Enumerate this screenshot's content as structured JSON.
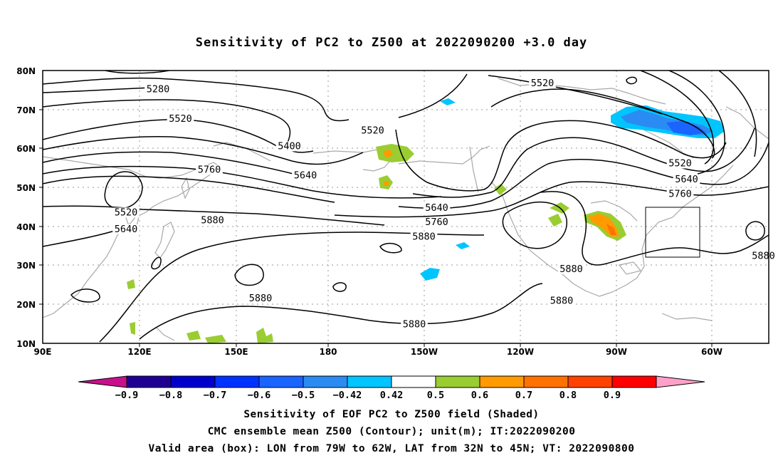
{
  "title": "Sensitivity of PC2 to Z500 at 2022090200 +3.0 day",
  "axes": {
    "lat_labels": [
      "80N",
      "70N",
      "60N",
      "50N",
      "40N",
      "30N",
      "20N",
      "10N"
    ],
    "lon_labels": [
      "90E",
      "120E",
      "150E",
      "180",
      "150W",
      "120W",
      "90W",
      "60W"
    ]
  },
  "contour_labels": [
    {
      "text": "5280",
      "lon": 126,
      "lat": 74.6
    },
    {
      "text": "5520",
      "lon": 133,
      "lat": 67
    },
    {
      "text": "5400",
      "lon": 167,
      "lat": 60
    },
    {
      "text": "5520",
      "lon": 193,
      "lat": 64
    },
    {
      "text": "5520",
      "lon": 246,
      "lat": 76.2
    },
    {
      "text": "5760",
      "lon": 142,
      "lat": 54
    },
    {
      "text": "5640",
      "lon": 172,
      "lat": 52.5
    },
    {
      "text": "5520",
      "lon": 116,
      "lat": 43
    },
    {
      "text": "5640",
      "lon": 116,
      "lat": 38.7
    },
    {
      "text": "5880",
      "lon": 143,
      "lat": 41
    },
    {
      "text": "5880",
      "lon": 158,
      "lat": 21
    },
    {
      "text": "5640",
      "lon": 213,
      "lat": 44.2
    },
    {
      "text": "5760",
      "lon": 213,
      "lat": 40.5
    },
    {
      "text": "5880",
      "lon": 209,
      "lat": 36.8
    },
    {
      "text": "5880",
      "lon": 255,
      "lat": 28.5
    },
    {
      "text": "5880",
      "lon": 252,
      "lat": 20.3
    },
    {
      "text": "5880",
      "lon": 206,
      "lat": 14.3
    },
    {
      "text": "5520",
      "lon": 289,
      "lat": 55.6
    },
    {
      "text": "5640",
      "lon": 291,
      "lat": 51.5
    },
    {
      "text": "5760",
      "lon": 289,
      "lat": 47.7
    },
    {
      "text": "5880",
      "lon": 315,
      "lat": 31.8
    }
  ],
  "colorbar": {
    "labels": [
      "−0.9",
      "−0.8",
      "−0.7",
      "−0.6",
      "−0.5",
      "−0.42",
      "0.42",
      "0.5",
      "0.6",
      "0.7",
      "0.8",
      "0.9"
    ],
    "colors": [
      "#1f0093",
      "#0000cd",
      "#0032ff",
      "#1a64ff",
      "#2a8cf2",
      "#00c5ff",
      "#ffffff",
      "#9acd32",
      "#ff9b00",
      "#ff7200",
      "#ff4200",
      "#ff0000"
    ],
    "low_end_color": "#c8108c",
    "high_end_color": "#ffa0c8"
  },
  "valid_box": {
    "lon_west": "79W",
    "lon_east": "62W",
    "lat_south": "32N",
    "lat_north": "45N"
  },
  "footer": {
    "line1": "Sensitivity of EOF PC2 to Z500 field (Shaded)",
    "line2": "CMC ensemble mean Z500 (Contour); unit(m); IT:2022090200",
    "line3": "Valid area (box): LON from 79W to 62W, LAT from 32N to 45N; VT: 2022090800"
  }
}
